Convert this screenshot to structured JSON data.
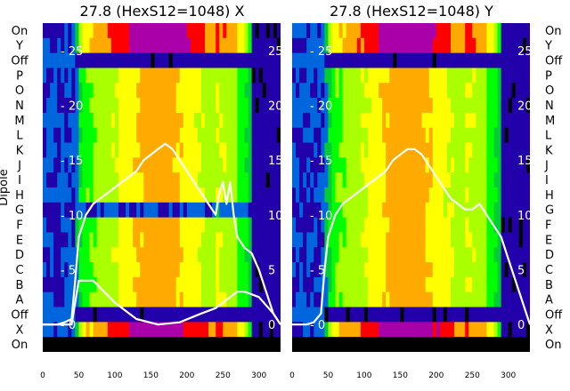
{
  "chart_data": [
    {
      "type": "heatmap",
      "title": "27.8 (HexS12=1048) X",
      "ylabel": "Dipole",
      "rows": [
        "On",
        "Y",
        "Off",
        "P",
        "O",
        "N",
        "M",
        "L",
        "K",
        "J",
        "I",
        "H",
        "G",
        "F",
        "E",
        "D",
        "C",
        "B",
        "A",
        "Off",
        "X",
        "On"
      ],
      "xticks": [
        0,
        50,
        100,
        150,
        200,
        250,
        300
      ],
      "xlim": [
        0,
        330
      ],
      "overlay_yticks": [
        0,
        5,
        10,
        15,
        20,
        25
      ],
      "overlay_ylim": [
        -2.5,
        27.5
      ],
      "colormap": [
        "#000000",
        "#2200aa",
        "#0066dd",
        "#00cc33",
        "#00ff00",
        "#aaff00",
        "#ffff00",
        "#ffaa00",
        "#ff0000",
        "#aa00aa"
      ],
      "line_color": "#ffffff",
      "series": [
        {
          "name": "",
          "x": [
            0,
            10,
            20,
            30,
            40,
            45,
            50,
            60,
            70,
            80,
            90,
            100,
            110,
            120,
            130,
            140,
            150,
            160,
            170,
            180,
            190,
            200,
            210,
            220,
            230,
            240,
            245,
            250,
            255,
            260,
            265,
            270,
            280,
            290,
            300,
            310,
            320,
            330
          ],
          "y": [
            0,
            0,
            0,
            0.2,
            0.5,
            4,
            8,
            10,
            11,
            11.5,
            12,
            12.5,
            13,
            13.5,
            14,
            15,
            15.5,
            16,
            16.5,
            16,
            15,
            14,
            13,
            12,
            11,
            10,
            12,
            13,
            11,
            13,
            10,
            8,
            7,
            6.5,
            5,
            3,
            1,
            0
          ]
        },
        {
          "name": "",
          "x": [
            0,
            40,
            45,
            50,
            70,
            100,
            130,
            160,
            190,
            220,
            240,
            250,
            260,
            270,
            280,
            300,
            320,
            330
          ],
          "y": [
            0,
            0,
            2,
            4,
            4,
            2,
            0.5,
            0,
            0.2,
            1,
            1.5,
            2,
            2.5,
            3,
            3,
            2.5,
            1,
            0
          ]
        }
      ]
    },
    {
      "type": "heatmap",
      "title": "27.8 (HexS12=1048) Y",
      "ylabel": "",
      "rows": [
        "On",
        "Y",
        "Off",
        "P",
        "O",
        "N",
        "M",
        "L",
        "K",
        "J",
        "I",
        "H",
        "G",
        "F",
        "E",
        "D",
        "C",
        "B",
        "A",
        "Off",
        "X",
        "On"
      ],
      "xticks": [
        0,
        50,
        100,
        150,
        200,
        250,
        300
      ],
      "xlim": [
        0,
        330
      ],
      "overlay_yticks": [
        0,
        5,
        10,
        15,
        20,
        25
      ],
      "overlay_ylim": [
        -2.5,
        27.5
      ],
      "colormap": [
        "#000000",
        "#2200aa",
        "#0066dd",
        "#00cc33",
        "#00ff00",
        "#aaff00",
        "#ffff00",
        "#ffaa00",
        "#ff0000",
        "#aa00aa"
      ],
      "line_color": "#ffffff",
      "series": [
        {
          "name": "",
          "x": [
            0,
            10,
            20,
            30,
            40,
            45,
            50,
            60,
            70,
            80,
            90,
            100,
            110,
            120,
            130,
            140,
            150,
            160,
            170,
            180,
            190,
            200,
            210,
            220,
            230,
            240,
            250,
            260,
            270,
            280,
            290,
            300,
            310,
            320,
            330
          ],
          "y": [
            0,
            0,
            0,
            0.2,
            1,
            5,
            8,
            10,
            11,
            11.5,
            12,
            12.5,
            13,
            13.5,
            14,
            15,
            15.5,
            16,
            16,
            15.5,
            14.5,
            13.5,
            12.5,
            11.5,
            11,
            10.5,
            10.5,
            11,
            10,
            9,
            8,
            6,
            4,
            2,
            0
          ]
        }
      ]
    }
  ]
}
